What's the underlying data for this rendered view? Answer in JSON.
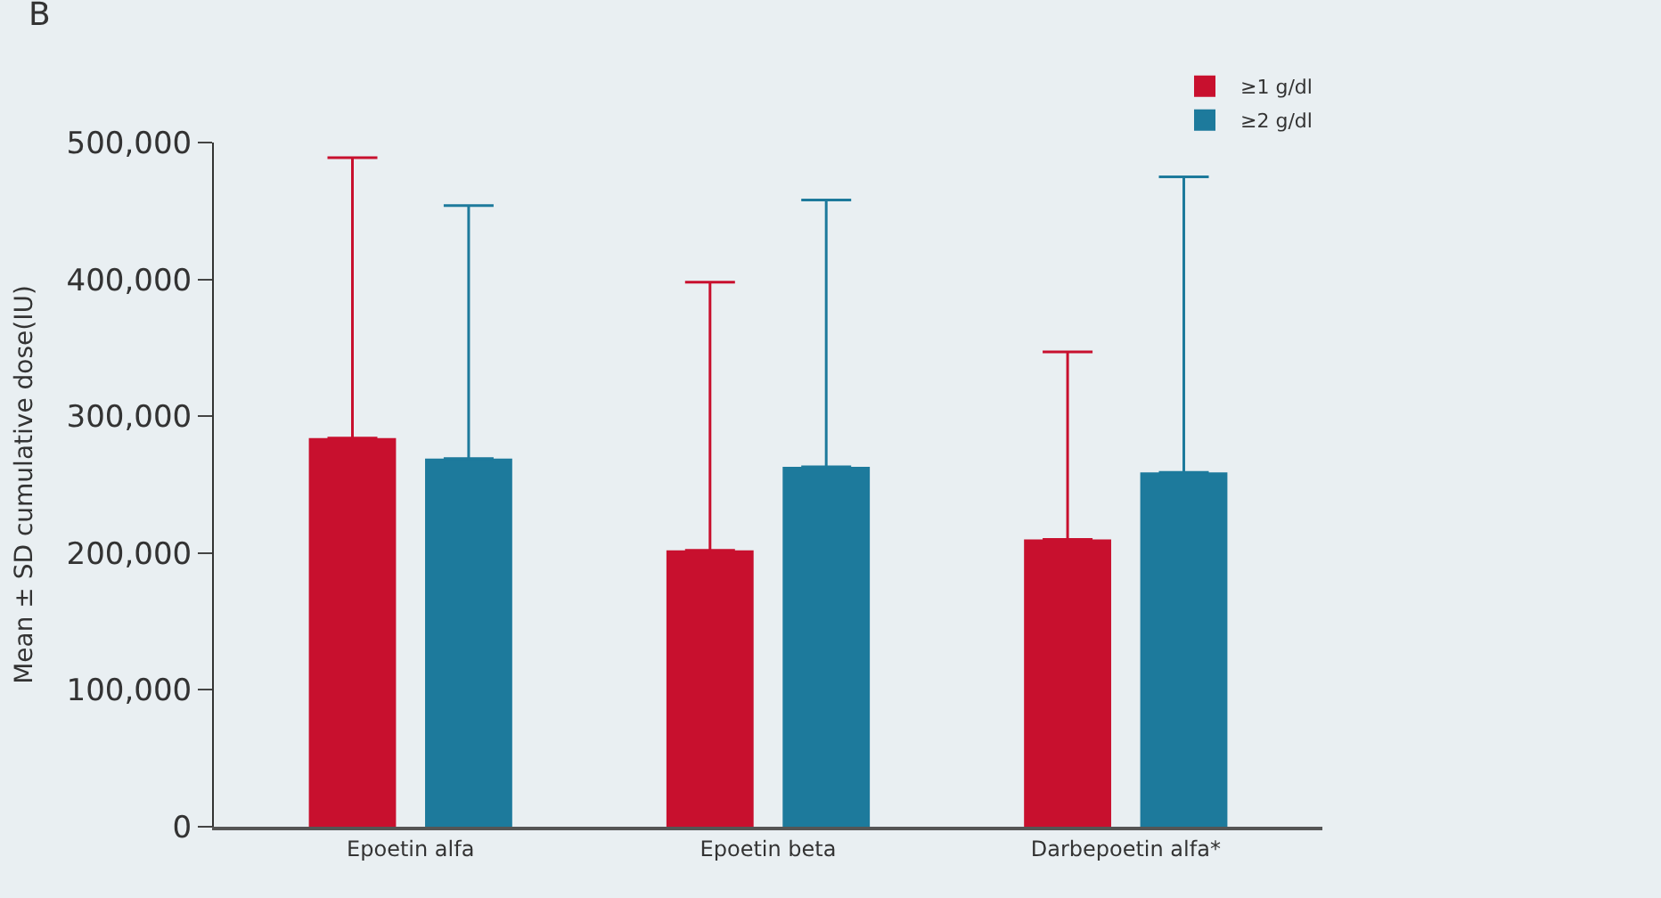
{
  "chart_data": {
    "type": "bar",
    "ylabel": "Mean ± SD cumulative dose(IU)",
    "annotations": [
      "B"
    ],
    "categories": [
      "Epoetin alfa",
      "Epoetin beta",
      "Darbepoetin alfa*"
    ],
    "series": [
      {
        "name": "≥1 g/dl",
        "color": "#c8102e",
        "values": [
          284000,
          202000,
          210000
        ],
        "errors": [
          [
            284000,
            489000
          ],
          [
            202000,
            398000
          ],
          [
            210000,
            347000
          ]
        ]
      },
      {
        "name": "≥2 g/dl",
        "color": "#1d7a9c",
        "values": [
          269000,
          263000,
          259000
        ],
        "errors": [
          [
            269000,
            454000
          ],
          [
            263000,
            458000
          ],
          [
            259000,
            475000
          ]
        ]
      }
    ],
    "ylim": [
      0,
      500000
    ],
    "yticks": [
      0,
      {
        "value": 100000,
        "label": "100,000"
      },
      {
        "value": 200000,
        "label": "200,000"
      },
      {
        "value": 300000,
        "label": "300,000"
      },
      {
        "value": 400000,
        "label": "400,000"
      },
      {
        "value": 500000,
        "label": "500,000"
      }
    ],
    "grid": false,
    "legend": "top right"
  }
}
